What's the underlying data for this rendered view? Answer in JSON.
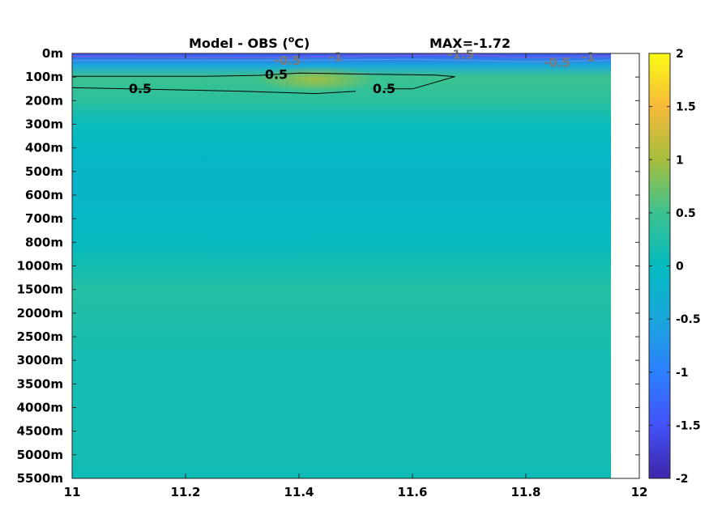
{
  "chart_data": {
    "type": "heatmap",
    "title": "Model - OBS (",
    "title_sup": "o",
    "title_end": "C)",
    "max_label": "MAX=-1.72",
    "xlim": [
      11,
      12
    ],
    "x_ticks": [
      "11",
      "11.2",
      "11.4",
      "11.6",
      "11.8",
      "12"
    ],
    "x_tick_values": [
      11,
      11.2,
      11.4,
      11.6,
      11.8,
      12
    ],
    "data_x_end": 11.95,
    "y_ticks": [
      "0m",
      "100m",
      "200m",
      "300m",
      "400m",
      "500m",
      "600m",
      "700m",
      "800m",
      "1000m",
      "1500m",
      "2000m",
      "2500m",
      "3000m",
      "3500m",
      "4000m",
      "4500m",
      "5000m",
      "5500m"
    ],
    "colorbar": {
      "range": [
        -2,
        2
      ],
      "ticks": [
        "2",
        "1.5",
        "1",
        "0.5",
        "0",
        "-0.5",
        "-1",
        "-1.5",
        "-2"
      ],
      "tick_values": [
        2,
        1.5,
        1,
        0.5,
        0,
        -0.5,
        -1,
        -1.5,
        -2
      ],
      "colormap": "parula"
    },
    "layers": [
      {
        "depth": "0m",
        "value": -1.5
      },
      {
        "depth": "50m",
        "value": -0.5
      },
      {
        "depth": "100m",
        "value": 0.5
      },
      {
        "depth": "200m",
        "value": 0.35
      },
      {
        "depth": "300m",
        "value": 0.05
      },
      {
        "depth": "400m",
        "value": -0.05
      },
      {
        "depth": "500m",
        "value": -0.15
      },
      {
        "depth": "600m",
        "value": -0.15
      },
      {
        "depth": "700m",
        "value": -0.05
      },
      {
        "depth": "800m",
        "value": 0.0
      },
      {
        "depth": "1000m",
        "value": 0.15
      },
      {
        "depth": "1500m",
        "value": 0.3
      },
      {
        "depth": "2000m",
        "value": 0.25
      },
      {
        "depth": "2500m",
        "value": 0.2
      },
      {
        "depth": "3000m",
        "value": 0.15
      },
      {
        "depth": "3500m",
        "value": 0.15
      },
      {
        "depth": "4000m",
        "value": 0.15
      },
      {
        "depth": "4500m",
        "value": 0.15
      },
      {
        "depth": "5000m",
        "value": 0.15
      },
      {
        "depth": "5500m",
        "value": 0.1
      }
    ],
    "contours": [
      {
        "level": "0.5",
        "style": "black"
      },
      {
        "level": "-0.5",
        "style": "grey"
      },
      {
        "level": "-1",
        "style": "grey"
      },
      {
        "level": "-1.5",
        "style": "grey"
      }
    ],
    "contour_labels": [
      {
        "text": "0.5",
        "x": 11.12,
        "depth_index": 1.5
      },
      {
        "text": "0.5",
        "x": 11.36,
        "depth_index": 0.9
      },
      {
        "text": "0.5",
        "x": 11.55,
        "depth_index": 1.5
      },
      {
        "text": "-0.5",
        "x": 11.38,
        "depth_index": 0.3
      },
      {
        "text": "-1",
        "x": 11.465,
        "depth_index": 0.15
      },
      {
        "text": "-1.5",
        "x": 11.685,
        "depth_index": 0.05
      },
      {
        "text": "-0.5",
        "x": 11.855,
        "depth_index": 0.4
      },
      {
        "text": "-1",
        "x": 11.91,
        "depth_index": 0.15
      }
    ]
  }
}
